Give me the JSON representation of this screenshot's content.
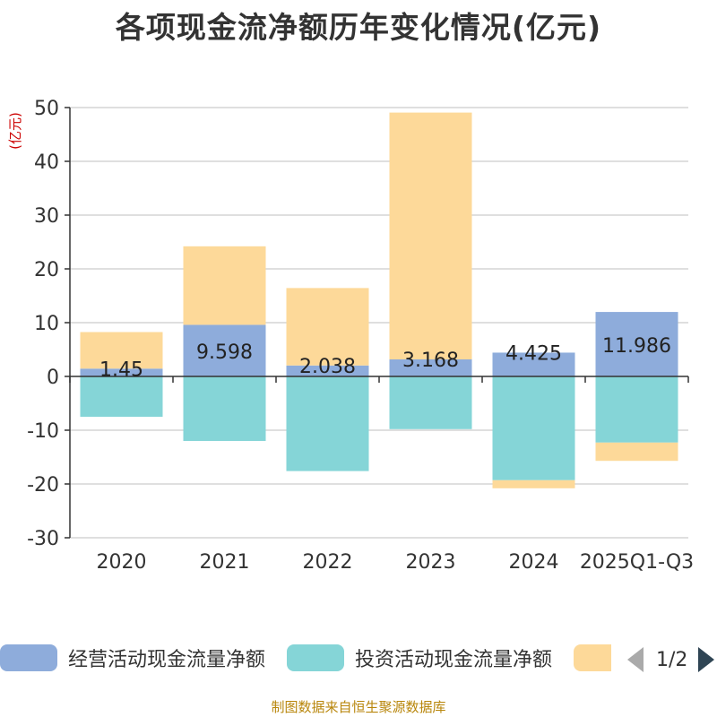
{
  "chart_data": {
    "type": "bar",
    "stacked": true,
    "title": "各项现金流净额历年变化情况(亿元)",
    "ylabel": "(亿元)",
    "ylim": [
      -30,
      50
    ],
    "yticks": [
      50,
      40,
      30,
      20,
      10,
      0,
      -10,
      -20,
      -30
    ],
    "categories": [
      "2020",
      "2021",
      "2022",
      "2023",
      "2024",
      "2025Q1-Q3"
    ],
    "series": [
      {
        "name": "经营活动现金流量净额",
        "color": "#8eacdb",
        "values": [
          1.45,
          9.598,
          2.038,
          3.168,
          4.425,
          11.986
        ],
        "labels": [
          "1.45",
          "9.598",
          "2.038",
          "3.168",
          "4.425",
          "11.986"
        ]
      },
      {
        "name": "投资活动现金流量净额",
        "color": "#85d5d7",
        "values": [
          -7.5,
          -12.0,
          -17.6,
          -9.8,
          -19.3,
          -12.3
        ]
      },
      {
        "name": "",
        "color": "#fdd999",
        "values": [
          6.8,
          14.6,
          14.4,
          45.9,
          -1.5,
          -3.4
        ]
      }
    ],
    "legend_position": "bottom",
    "legend_page": "1/2",
    "grid": true
  },
  "source": "制图数据来自恒生聚源数据库"
}
